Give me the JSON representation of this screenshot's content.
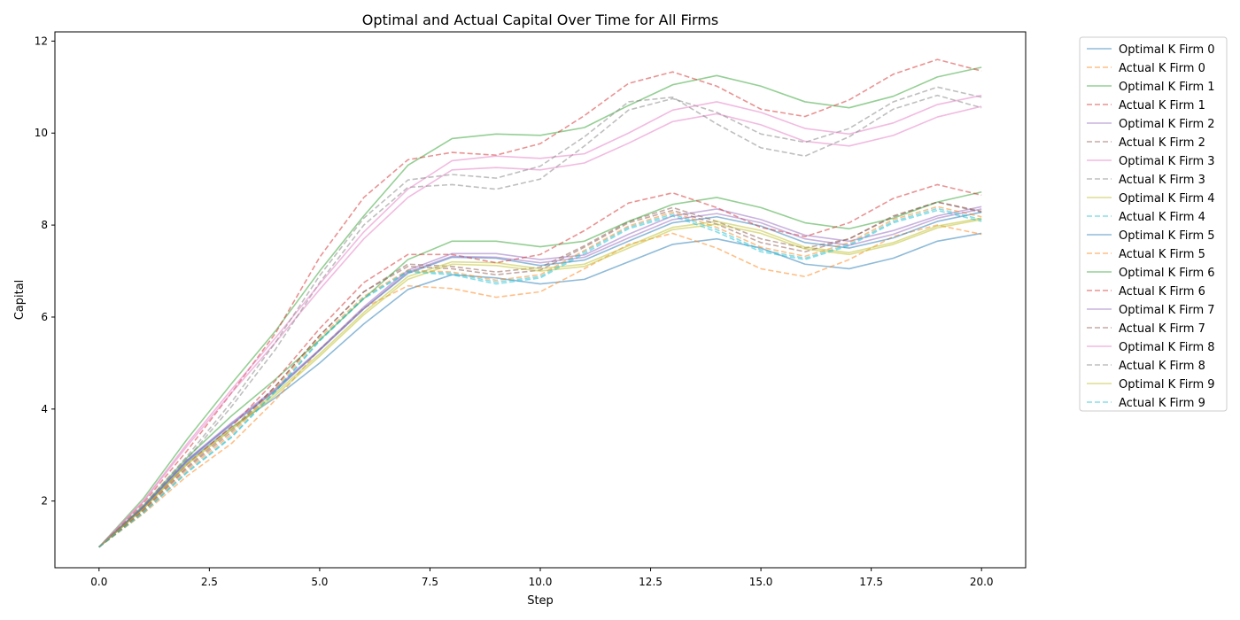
{
  "chart_data": {
    "type": "line",
    "title": "Optimal and Actual Capital Over Time for All Firms",
    "xlabel": "Step",
    "ylabel": "Capital",
    "xlim": [
      -1,
      21
    ],
    "ylim": [
      0.55,
      12.2
    ],
    "xticks": [
      0.0,
      2.5,
      5.0,
      7.5,
      10.0,
      12.5,
      15.0,
      17.5,
      20.0
    ],
    "xtick_labels": [
      "0.0",
      "2.5",
      "5.0",
      "7.5",
      "10.0",
      "12.5",
      "15.0",
      "17.5",
      "20.0"
    ],
    "yticks": [
      2,
      4,
      6,
      8,
      10,
      12
    ],
    "ytick_labels": [
      "2",
      "4",
      "6",
      "8",
      "10",
      "12"
    ],
    "grid": false,
    "legend_position": "outside-right",
    "x": [
      0,
      1,
      2,
      3,
      4,
      5,
      6,
      7,
      8,
      9,
      10,
      11,
      12,
      13,
      14,
      15,
      16,
      17,
      18,
      19,
      20
    ],
    "series": [
      {
        "name": "Optimal K Firm 0",
        "color": "#1f77b4",
        "dash": "solid",
        "values": [
          1.0,
          1.85,
          2.85,
          3.6,
          4.25,
          5.0,
          5.85,
          6.6,
          6.92,
          6.85,
          6.72,
          6.82,
          7.2,
          7.58,
          7.7,
          7.5,
          7.15,
          7.05,
          7.28,
          7.65,
          7.82
        ]
      },
      {
        "name": "Actual K Firm 0",
        "color": "#ff7f0e",
        "dash": "dashed",
        "values": [
          1.0,
          1.72,
          2.55,
          3.25,
          4.2,
          5.3,
          6.2,
          6.68,
          6.62,
          6.43,
          6.55,
          7.05,
          7.58,
          7.82,
          7.5,
          7.05,
          6.88,
          7.25,
          7.75,
          8.0,
          7.8
        ]
      },
      {
        "name": "Optimal K Firm 1",
        "color": "#2ca02c",
        "dash": "solid",
        "values": [
          1.0,
          2.05,
          3.35,
          4.55,
          5.7,
          7.0,
          8.2,
          9.3,
          9.88,
          9.98,
          9.95,
          10.12,
          10.6,
          11.05,
          11.25,
          11.02,
          10.68,
          10.55,
          10.8,
          11.22,
          11.43
        ]
      },
      {
        "name": "Actual K Firm 1",
        "color": "#d62728",
        "dash": "dashed",
        "values": [
          1.0,
          1.95,
          3.1,
          4.35,
          5.65,
          7.3,
          8.6,
          9.42,
          9.58,
          9.52,
          9.77,
          10.38,
          11.08,
          11.33,
          11.02,
          10.52,
          10.36,
          10.72,
          11.28,
          11.6,
          11.35
        ]
      },
      {
        "name": "Optimal K Firm 2",
        "color": "#9467bd",
        "dash": "solid",
        "values": [
          1.0,
          1.88,
          2.9,
          3.7,
          4.45,
          5.3,
          6.22,
          7.02,
          7.38,
          7.38,
          7.25,
          7.35,
          7.8,
          8.2,
          8.35,
          8.12,
          7.78,
          7.65,
          7.88,
          8.2,
          8.4
        ]
      },
      {
        "name": "Actual K Firm 2",
        "color": "#8c564b",
        "dash": "dashed",
        "values": [
          1.0,
          1.8,
          2.75,
          3.55,
          4.5,
          5.6,
          6.55,
          7.15,
          7.1,
          6.98,
          7.08,
          7.55,
          8.08,
          8.38,
          8.08,
          7.7,
          7.5,
          7.7,
          8.18,
          8.5,
          8.28
        ]
      },
      {
        "name": "Optimal K Firm 3",
        "color": "#e377c2",
        "dash": "solid",
        "values": [
          1.0,
          1.98,
          3.2,
          4.35,
          5.45,
          6.6,
          7.7,
          8.6,
          9.2,
          9.25,
          9.2,
          9.35,
          9.78,
          10.25,
          10.42,
          10.18,
          9.82,
          9.72,
          9.95,
          10.35,
          10.58
        ]
      },
      {
        "name": "Actual K Firm 3",
        "color": "#7f7f7f",
        "dash": "dashed",
        "values": [
          1.0,
          1.88,
          2.92,
          4.05,
          5.3,
          6.75,
          8.0,
          8.82,
          8.88,
          8.78,
          9.0,
          9.72,
          10.5,
          10.75,
          10.45,
          9.98,
          9.8,
          10.1,
          10.68,
          11.0,
          10.78
        ]
      },
      {
        "name": "Optimal K Firm 4",
        "color": "#bcbd22",
        "dash": "solid",
        "values": [
          1.0,
          1.83,
          2.82,
          3.58,
          4.35,
          5.2,
          6.1,
          6.88,
          7.2,
          7.18,
          7.05,
          7.15,
          7.55,
          7.95,
          8.08,
          7.88,
          7.52,
          7.4,
          7.62,
          7.98,
          8.15
        ]
      },
      {
        "name": "Actual K Firm 4",
        "color": "#17becf",
        "dash": "dashed",
        "values": [
          1.0,
          1.74,
          2.62,
          3.38,
          4.38,
          5.48,
          6.4,
          6.98,
          6.92,
          6.72,
          6.85,
          7.38,
          7.92,
          8.2,
          7.85,
          7.42,
          7.25,
          7.55,
          8.05,
          8.32,
          8.08
        ]
      },
      {
        "name": "Optimal K Firm 5",
        "color": "#1f77b4",
        "dash": "solid",
        "values": [
          1.0,
          1.86,
          2.88,
          3.66,
          4.4,
          5.28,
          6.18,
          6.95,
          7.3,
          7.28,
          7.12,
          7.24,
          7.65,
          8.05,
          8.18,
          7.98,
          7.62,
          7.5,
          7.72,
          8.08,
          8.28
        ]
      },
      {
        "name": "Actual K Firm 5",
        "color": "#ff7f0e",
        "dash": "dashed",
        "values": [
          1.0,
          1.76,
          2.68,
          3.45,
          4.45,
          5.55,
          6.45,
          7.02,
          6.98,
          6.8,
          6.92,
          7.45,
          7.98,
          8.28,
          7.95,
          7.52,
          7.32,
          7.62,
          8.12,
          8.4,
          8.18
        ]
      },
      {
        "name": "Optimal K Firm 6",
        "color": "#2ca02c",
        "dash": "solid",
        "values": [
          1.0,
          1.9,
          2.95,
          3.85,
          4.65,
          5.5,
          6.4,
          7.25,
          7.65,
          7.65,
          7.53,
          7.65,
          8.08,
          8.45,
          8.6,
          8.38,
          8.05,
          7.92,
          8.15,
          8.5,
          8.72
        ]
      },
      {
        "name": "Actual K Firm 6",
        "color": "#d62728",
        "dash": "dashed",
        "values": [
          1.0,
          1.82,
          2.8,
          3.62,
          4.62,
          5.75,
          6.75,
          7.36,
          7.36,
          7.18,
          7.36,
          7.88,
          8.48,
          8.7,
          8.38,
          7.95,
          7.75,
          8.05,
          8.58,
          8.88,
          8.65
        ]
      },
      {
        "name": "Optimal K Firm 7",
        "color": "#9467bd",
        "dash": "solid",
        "values": [
          1.0,
          1.87,
          2.88,
          3.68,
          4.42,
          5.28,
          6.18,
          6.98,
          7.32,
          7.3,
          7.18,
          7.3,
          7.72,
          8.12,
          8.25,
          8.05,
          7.7,
          7.56,
          7.8,
          8.15,
          8.35
        ]
      },
      {
        "name": "Actual K Firm 7",
        "color": "#8c564b",
        "dash": "dashed",
        "values": [
          1.0,
          1.79,
          2.72,
          3.5,
          4.5,
          5.6,
          6.55,
          7.1,
          7.05,
          6.92,
          7.02,
          7.52,
          8.05,
          8.32,
          8.02,
          7.62,
          7.42,
          7.7,
          8.2,
          8.5,
          8.3
        ]
      },
      {
        "name": "Optimal K Firm 8",
        "color": "#e377c2",
        "dash": "solid",
        "values": [
          1.0,
          2.0,
          3.25,
          4.42,
          5.55,
          6.72,
          7.85,
          8.78,
          9.4,
          9.5,
          9.45,
          9.55,
          10.0,
          10.5,
          10.68,
          10.45,
          10.1,
          9.98,
          10.22,
          10.62,
          10.82
        ]
      },
      {
        "name": "Actual K Firm 8",
        "color": "#7f7f7f",
        "dash": "dashed",
        "values": [
          1.0,
          1.9,
          2.98,
          4.15,
          5.45,
          6.9,
          8.15,
          8.98,
          9.1,
          9.02,
          9.28,
          9.92,
          10.68,
          10.78,
          10.2,
          9.68,
          9.5,
          9.92,
          10.52,
          10.82,
          10.55
        ]
      },
      {
        "name": "Optimal K Firm 9",
        "color": "#bcbd22",
        "dash": "solid",
        "values": [
          1.0,
          1.82,
          2.8,
          3.55,
          4.3,
          5.15,
          6.05,
          6.82,
          7.15,
          7.12,
          7.0,
          7.1,
          7.5,
          7.9,
          8.02,
          7.82,
          7.48,
          7.36,
          7.58,
          7.94,
          8.12
        ]
      },
      {
        "name": "Actual K Firm 9",
        "color": "#17becf",
        "dash": "dashed",
        "values": [
          1.0,
          1.75,
          2.64,
          3.4,
          4.4,
          5.5,
          6.42,
          7.0,
          6.95,
          6.76,
          6.88,
          7.42,
          7.95,
          8.24,
          7.9,
          7.46,
          7.28,
          7.58,
          8.08,
          8.36,
          8.12
        ]
      }
    ]
  }
}
